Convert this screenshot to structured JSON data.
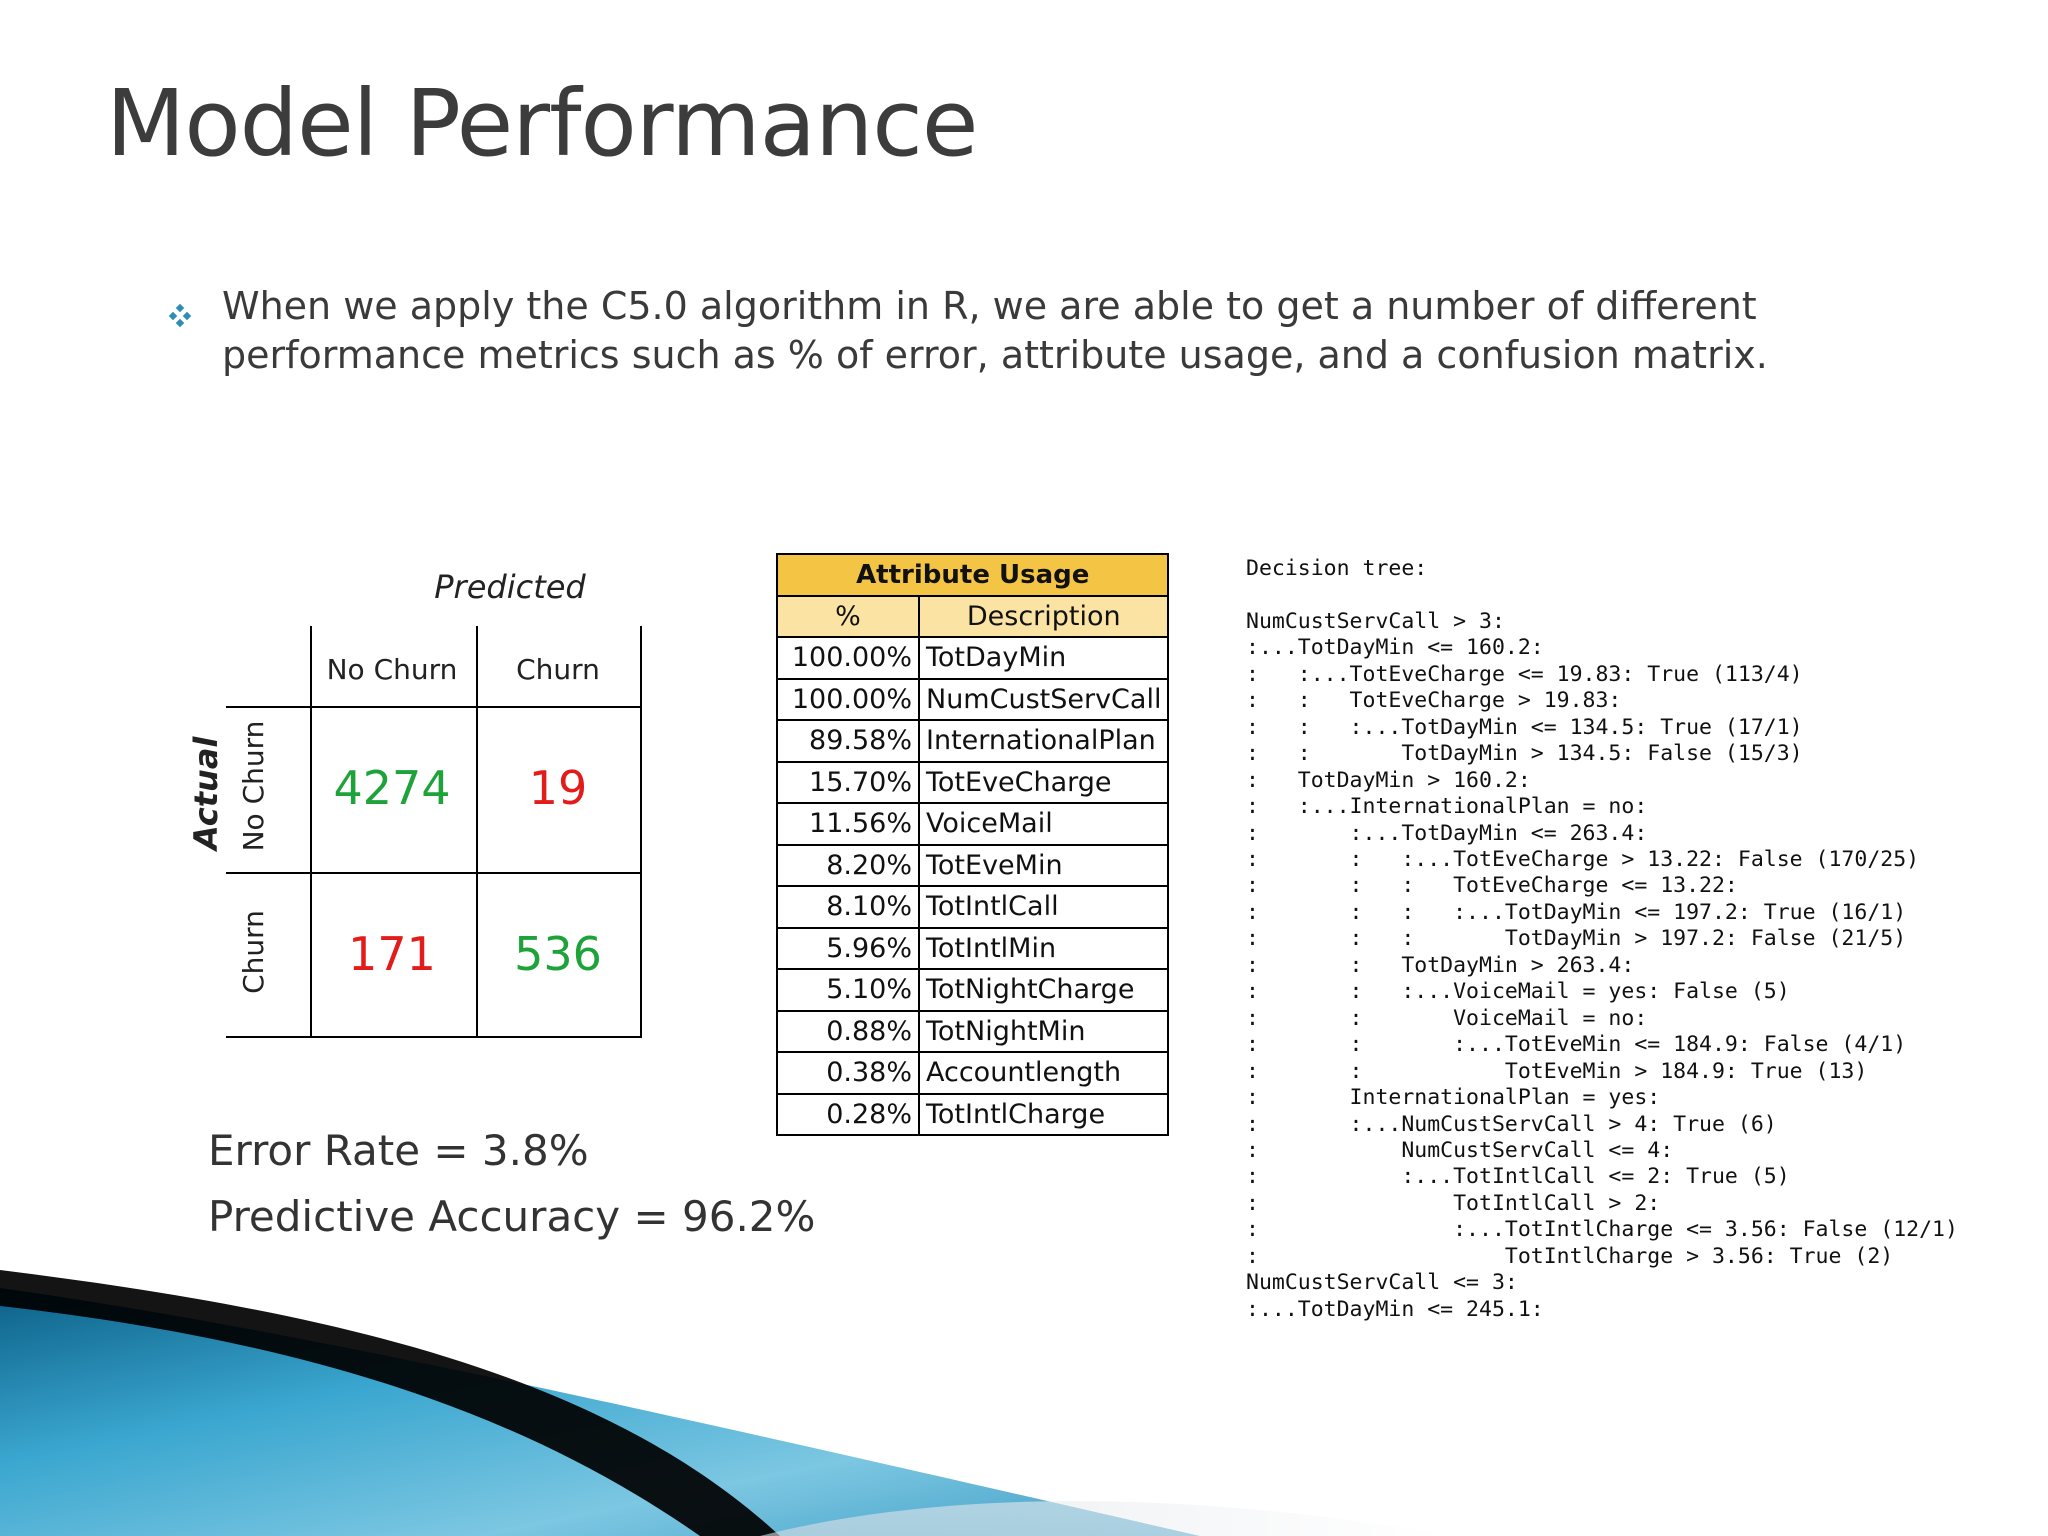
{
  "slide": {
    "title": "Model Performance",
    "bullet_text": "When we apply the C5.0 algorithm in R, we are able to get a number of different performance metrics such as % of error, attribute usage, and a confusion matrix."
  },
  "confusion_matrix": {
    "predicted_label": "Predicted",
    "actual_label": "Actual",
    "col_no_churn": "No Churn",
    "col_churn": "Churn",
    "row_no_churn": "No Churn",
    "row_churn": "Churn",
    "tn": "4274",
    "fp": "19",
    "fn": "171",
    "tp": "536",
    "colors": {
      "correct": "#1ea23a",
      "incorrect": "#e21b1b"
    }
  },
  "metrics": {
    "error_rate": "Error Rate = 3.8%",
    "accuracy": "Predictive Accuracy = 96.2%"
  },
  "attribute_usage": {
    "title": "Attribute Usage",
    "col_pct": "%",
    "col_desc": "Description",
    "header_color": "#f4c445",
    "rows": [
      {
        "pct": "100.00%",
        "desc": "TotDayMin"
      },
      {
        "pct": "100.00%",
        "desc": "NumCustServCall"
      },
      {
        "pct": "89.58%",
        "desc": "InternationalPlan"
      },
      {
        "pct": "15.70%",
        "desc": "TotEveCharge"
      },
      {
        "pct": "11.56%",
        "desc": "VoiceMail"
      },
      {
        "pct": "8.20%",
        "desc": "TotEveMin"
      },
      {
        "pct": "8.10%",
        "desc": "TotIntlCall"
      },
      {
        "pct": "5.96%",
        "desc": "TotIntlMin"
      },
      {
        "pct": "5.10%",
        "desc": "TotNightCharge"
      },
      {
        "pct": "0.88%",
        "desc": "TotNightMin"
      },
      {
        "pct": "0.38%",
        "desc": "Accountlength"
      },
      {
        "pct": "0.28%",
        "desc": "TotIntlCharge"
      }
    ]
  },
  "decision_tree": {
    "lines": [
      "Decision tree:",
      "",
      "NumCustServCall > 3:",
      ":...TotDayMin <= 160.2:",
      ":   :...TotEveCharge <= 19.83: True (113/4)",
      ":   :   TotEveCharge > 19.83:",
      ":   :   :...TotDayMin <= 134.5: True (17/1)",
      ":   :       TotDayMin > 134.5: False (15/3)",
      ":   TotDayMin > 160.2:",
      ":   :...InternationalPlan = no:",
      ":       :...TotDayMin <= 263.4:",
      ":       :   :...TotEveCharge > 13.22: False (170/25)",
      ":       :   :   TotEveCharge <= 13.22:",
      ":       :   :   :...TotDayMin <= 197.2: True (16/1)",
      ":       :   :       TotDayMin > 197.2: False (21/5)",
      ":       :   TotDayMin > 263.4:",
      ":       :   :...VoiceMail = yes: False (5)",
      ":       :       VoiceMail = no:",
      ":       :       :...TotEveMin <= 184.9: False (4/1)",
      ":       :           TotEveMin > 184.9: True (13)",
      ":       InternationalPlan = yes:",
      ":       :...NumCustServCall > 4: True (6)",
      ":           NumCustServCall <= 4:",
      ":           :...TotIntlCall <= 2: True (5)",
      ":               TotIntlCall > 2:",
      ":               :...TotIntlCharge <= 3.56: False (12/1)",
      ":                   TotIntlCharge > 3.56: True (2)",
      "NumCustServCall <= 3:",
      ":...TotDayMin <= 245.1:"
    ]
  }
}
